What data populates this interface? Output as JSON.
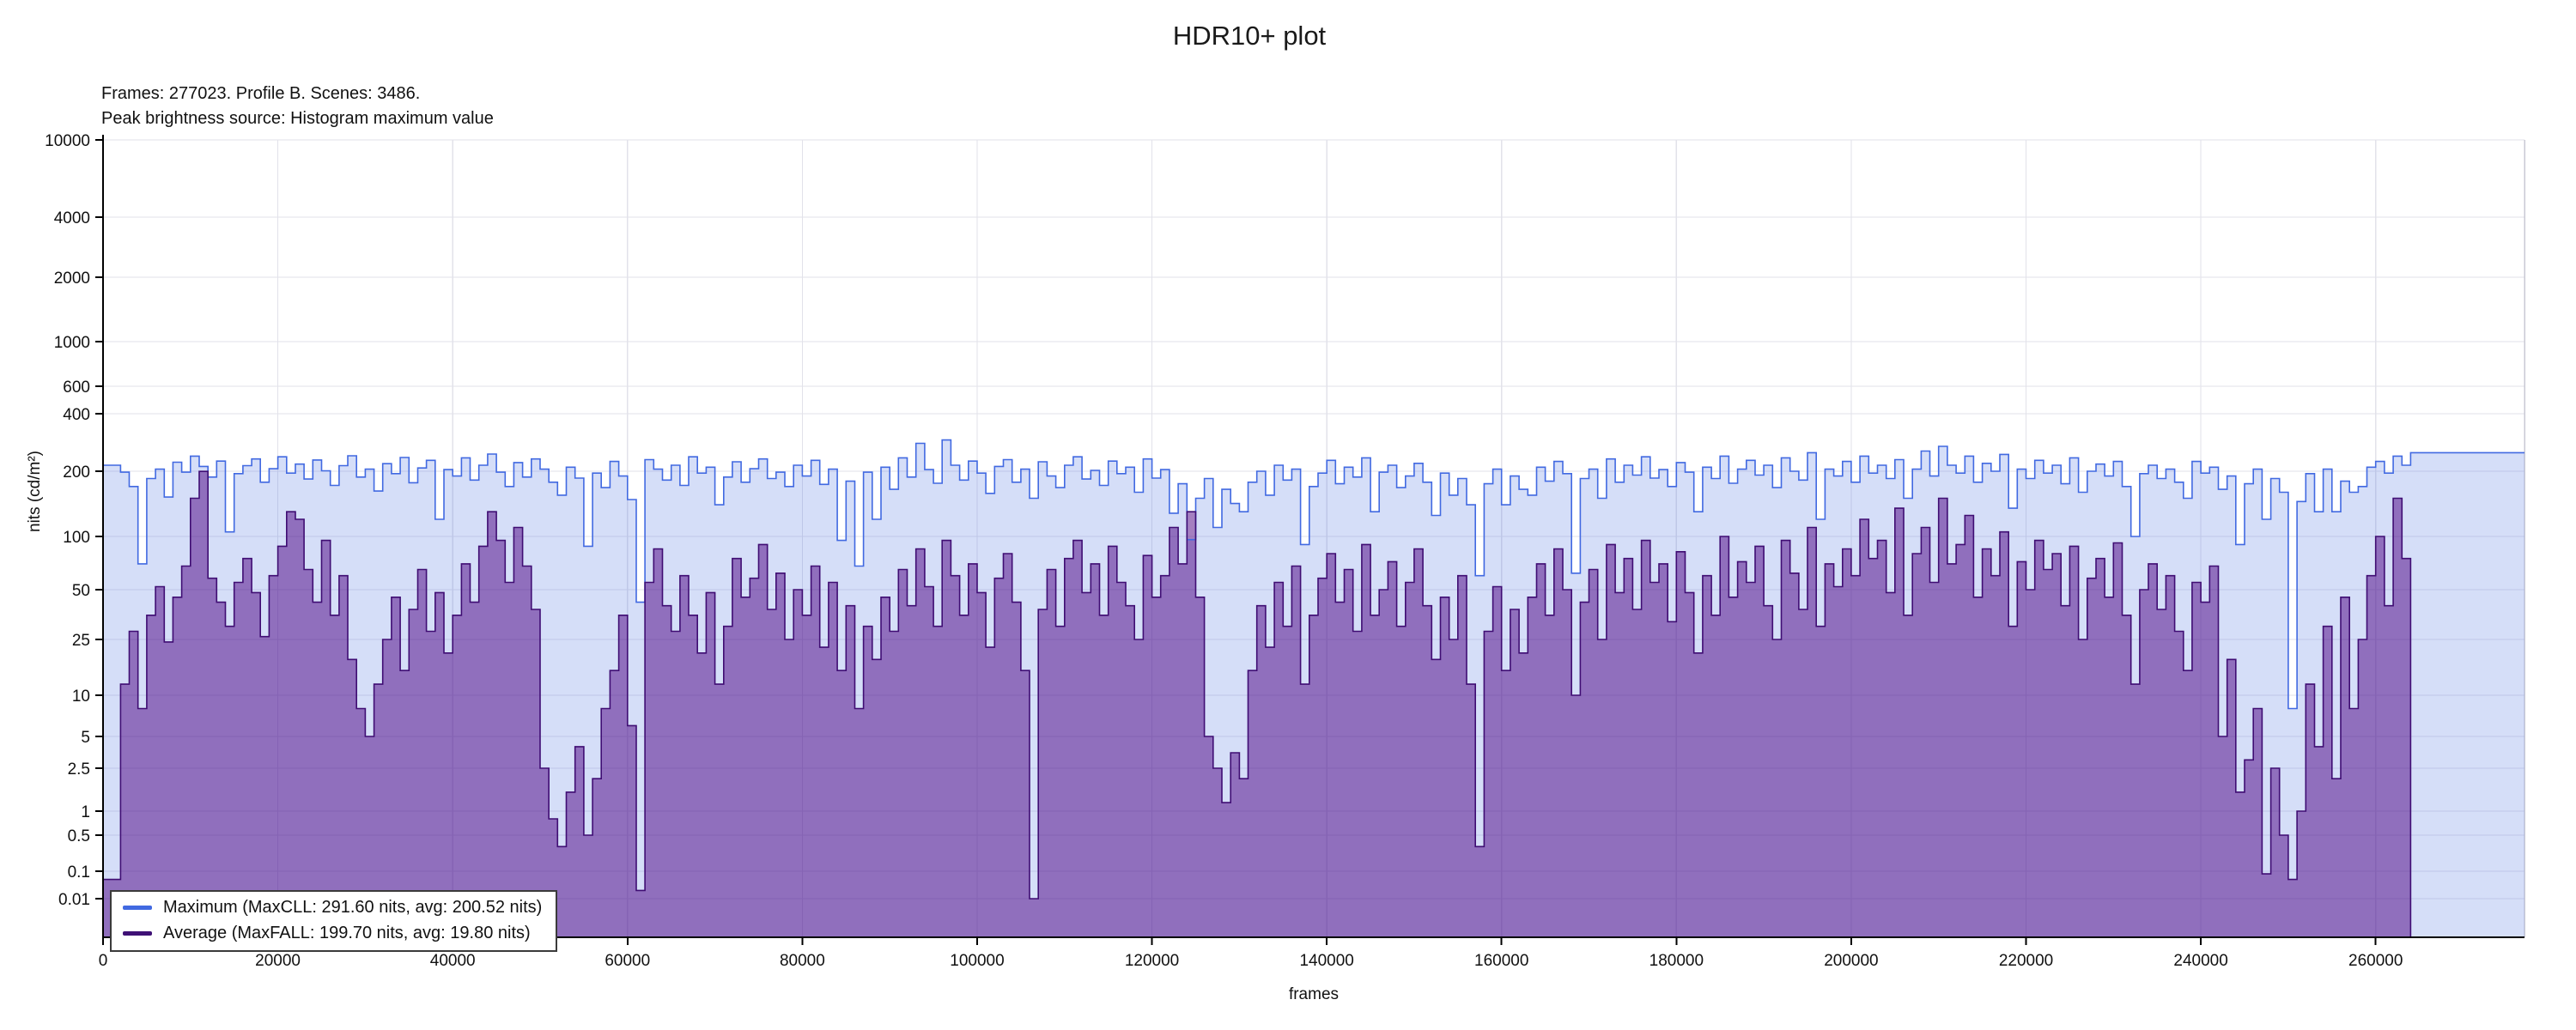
{
  "title": "HDR10+ plot",
  "subtitle": {
    "line1": "Frames: 277023. Profile B. Scenes: 3486.",
    "line2": "Peak brightness source: Histogram maximum value"
  },
  "axes": {
    "x_label": "frames",
    "y_label": "nits (cd/m²)",
    "x_ticks": [
      0,
      20000,
      40000,
      60000,
      80000,
      100000,
      120000,
      140000,
      160000,
      180000,
      200000,
      220000,
      240000,
      260000
    ],
    "y_ticks": [
      0.01,
      0.1,
      0.5,
      1,
      2.5,
      5,
      10,
      25,
      50,
      100,
      200,
      400,
      600,
      1000,
      2000,
      4000,
      10000
    ]
  },
  "legend": [
    {
      "label": "Maximum (MaxCLL: 291.60 nits, avg: 200.52 nits)",
      "color": "#4169E1"
    },
    {
      "label": "Average (MaxFALL: 199.70 nits, avg: 19.80 nits)",
      "color": "#3F1175"
    }
  ],
  "colors": {
    "max_line": "#4169E1",
    "max_fill": "rgba(65,105,225,0.22)",
    "avg_line": "#3F0D73",
    "avg_fill": "rgba(75,0,130,0.50)",
    "grid": "#e2e2ea",
    "spine": "#000000"
  },
  "chart_data": {
    "type": "area",
    "title": "HDR10+ plot",
    "xlabel": "frames",
    "ylabel": "nits (cd/m²)",
    "x_start": 0,
    "x_step": 1000,
    "x_max": 277023,
    "y_scale": "pq-nonlinear",
    "ylim": [
      0,
      10000
    ],
    "legend_position": "bottom-left",
    "grid": true,
    "stats": {
      "frames": 277023,
      "profile": "B",
      "scenes": 3486,
      "maxcll_nits": 291.6,
      "max_avg_nits": 200.52,
      "maxfall_nits": 199.7,
      "avg_avg_nits": 19.8
    },
    "series": [
      {
        "name": "Maximum",
        "values": [
          215,
          215,
          198,
          170,
          70,
          185,
          205,
          152,
          223,
          198,
          240,
          212,
          188,
          226,
          105,
          195,
          214,
          232,
          178,
          206,
          238,
          196,
          218,
          184,
          229,
          201,
          172,
          214,
          241,
          188,
          205,
          162,
          219,
          195,
          236,
          177,
          208,
          228,
          120,
          204,
          190,
          235,
          182,
          215,
          246,
          198,
          170,
          222,
          188,
          232,
          205,
          178,
          155,
          210,
          186,
          88,
          196,
          168,
          225,
          190,
          148,
          42,
          230,
          205,
          182,
          215,
          172,
          238,
          196,
          210,
          140,
          188,
          224,
          178,
          206,
          232,
          185,
          198,
          170,
          215,
          190,
          228,
          174,
          205,
          95,
          180,
          68,
          198,
          120,
          210,
          165,
          235,
          188,
          280,
          204,
          176,
          291.6,
          215,
          182,
          226,
          196,
          158,
          212,
          230,
          178,
          205,
          150,
          224,
          190,
          168,
          215,
          238,
          184,
          202,
          172,
          226,
          195,
          210,
          160,
          232,
          186,
          204,
          128,
          175,
          96,
          150,
          185,
          110,
          165,
          142,
          130,
          178,
          200,
          155,
          215,
          182,
          205,
          90,
          170,
          196,
          228,
          175,
          210,
          188,
          235,
          130,
          198,
          215,
          168,
          190,
          220,
          178,
          125,
          196,
          155,
          185,
          140,
          60,
          175,
          205,
          140,
          190,
          165,
          155,
          210,
          180,
          225,
          195,
          62,
          185,
          205,
          150,
          232,
          178,
          215,
          192,
          238,
          186,
          204,
          170,
          222,
          198,
          130,
          210,
          185,
          240,
          176,
          205,
          228,
          192,
          215,
          168,
          235,
          200,
          182,
          250,
          120,
          205,
          190,
          225,
          178,
          240,
          196,
          215,
          185,
          230,
          150,
          205,
          255,
          190,
          270,
          215,
          196,
          240,
          178,
          220,
          200,
          245,
          135,
          205,
          185,
          228,
          196,
          215,
          175,
          235,
          160,
          200,
          218,
          190,
          225,
          170,
          100,
          195,
          215,
          185,
          205,
          178,
          150,
          225,
          196,
          210,
          165,
          190,
          90,
          175,
          205,
          120,
          185,
          160,
          8,
          145,
          195,
          130,
          205,
          130,
          180,
          160,
          170,
          210,
          225,
          196,
          240,
          215,
          250,
          250,
          250,
          250,
          250,
          250,
          250,
          250,
          250,
          250,
          250,
          250,
          250,
          250
        ]
      },
      {
        "name": "Average",
        "values": [
          0.05,
          0.05,
          12,
          28,
          8,
          35,
          52,
          24,
          45,
          68,
          150,
          199.7,
          58,
          42,
          30,
          55,
          75,
          48,
          26,
          60,
          88,
          130,
          120,
          65,
          42,
          95,
          35,
          60,
          18,
          8,
          5,
          12,
          25,
          45,
          15,
          38,
          65,
          28,
          48,
          20,
          35,
          70,
          42,
          88,
          130,
          95,
          55,
          110,
          68,
          38,
          2.5,
          0.8,
          0.3,
          1.5,
          4,
          0.5,
          2,
          8,
          15,
          35,
          6,
          0.02,
          55,
          85,
          40,
          28,
          60,
          35,
          20,
          48,
          12,
          30,
          75,
          45,
          58,
          90,
          38,
          62,
          25,
          50,
          35,
          68,
          22,
          55,
          15,
          40,
          8,
          30,
          18,
          45,
          28,
          65,
          40,
          85,
          52,
          30,
          95,
          60,
          35,
          70,
          48,
          22,
          58,
          80,
          42,
          15,
          0.01,
          38,
          65,
          30,
          75,
          95,
          48,
          70,
          35,
          88,
          55,
          40,
          25,
          78,
          45,
          60,
          110,
          70,
          130,
          45,
          5,
          2.5,
          1.2,
          3.5,
          2,
          15,
          40,
          22,
          55,
          30,
          68,
          12,
          35,
          58,
          80,
          42,
          65,
          28,
          90,
          35,
          50,
          72,
          30,
          55,
          85,
          40,
          18,
          45,
          25,
          60,
          12,
          0.3,
          28,
          52,
          15,
          38,
          20,
          45,
          70,
          35,
          85,
          50,
          10,
          42,
          65,
          25,
          90,
          48,
          75,
          38,
          95,
          55,
          70,
          32,
          82,
          48,
          20,
          60,
          35,
          100,
          45,
          72,
          55,
          88,
          40,
          25,
          95,
          62,
          38,
          110,
          30,
          70,
          52,
          85,
          60,
          120,
          75,
          95,
          48,
          135,
          35,
          80,
          110,
          55,
          150,
          70,
          90,
          125,
          45,
          85,
          60,
          105,
          30,
          72,
          50,
          95,
          65,
          80,
          40,
          88,
          25,
          58,
          75,
          45,
          92,
          35,
          12,
          50,
          70,
          38,
          60,
          28,
          15,
          55,
          42,
          68,
          5,
          18,
          1.5,
          3,
          8,
          0.08,
          2.5,
          0.5,
          0.05,
          1,
          12,
          4,
          30,
          2,
          45,
          8,
          25,
          60,
          100,
          40,
          150,
          75,
          0,
          0,
          0,
          0,
          0,
          0,
          0,
          0,
          0,
          0,
          0,
          0,
          0,
          0
        ]
      }
    ]
  }
}
